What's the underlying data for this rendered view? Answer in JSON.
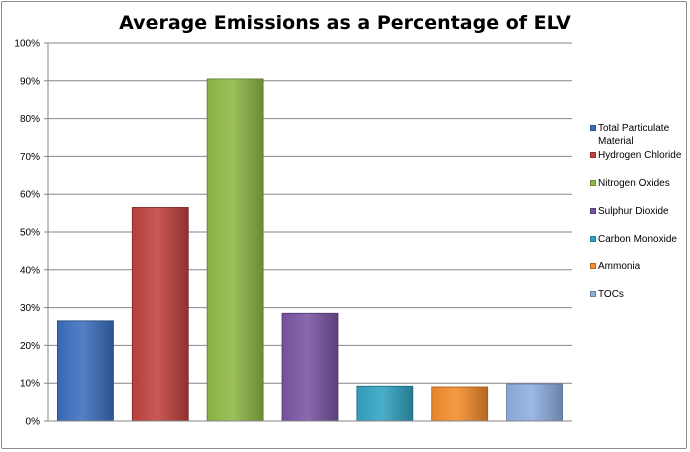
{
  "chart_data": {
    "type": "bar",
    "title": "Average Emissions as a Percentage of ELV",
    "xlabel": "",
    "ylabel": "",
    "ylim": [
      0,
      100
    ],
    "yticks": [
      "0%",
      "10%",
      "20%",
      "30%",
      "40%",
      "50%",
      "60%",
      "70%",
      "80%",
      "90%",
      "100%"
    ],
    "grid": true,
    "legend_position": "right",
    "series": [
      {
        "name": "Total Particulate Material",
        "value": 26.5,
        "color": "#3a6fbd"
      },
      {
        "name": "Hydrogen Chloride",
        "value": 56.5,
        "color": "#c0413e"
      },
      {
        "name": "Nitrogen Oxides",
        "value": 90.5,
        "color": "#8fb845"
      },
      {
        "name": "Sulphur Dioxide",
        "value": 28.5,
        "color": "#7a55a3"
      },
      {
        "name": "Carbon Monoxide",
        "value": 9.2,
        "color": "#33a3c2"
      },
      {
        "name": "Ammonia",
        "value": 9.0,
        "color": "#f38c2c"
      },
      {
        "name": "TOCs",
        "value": 9.8,
        "color": "#8faee0"
      }
    ]
  }
}
